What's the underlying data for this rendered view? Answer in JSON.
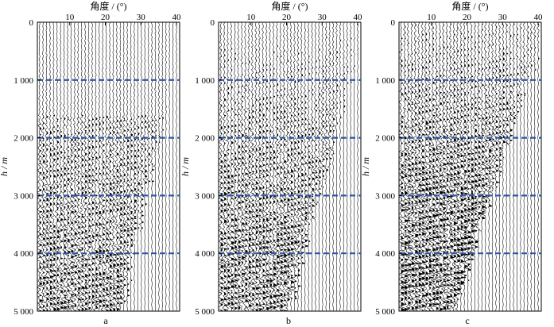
{
  "figure": {
    "top_axis_label": "角度 / (°)",
    "left_axis_label": "h / m",
    "angle_ticks": [
      "10",
      "20",
      "30",
      "40"
    ],
    "depth_ticks": [
      "0",
      "1 000",
      "2 000",
      "3 000",
      "4 000",
      "5 000"
    ],
    "dashed_line_color": "#2b56a6",
    "dashed_line_depths": [
      1000,
      2000,
      3000,
      4000
    ],
    "angle_range": [
      0,
      40
    ],
    "depth_range": [
      0,
      5000
    ],
    "trace_count": 40
  },
  "panels": [
    {
      "label": "a"
    },
    {
      "label": "b"
    },
    {
      "label": "c"
    }
  ]
}
